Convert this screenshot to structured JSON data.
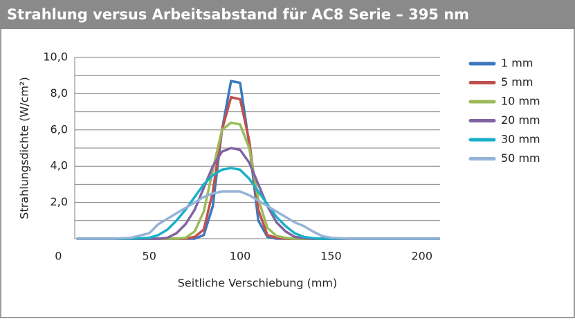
{
  "chart_data": {
    "type": "line",
    "title": "Strahlung versus Arbeitsabstand für AC8 Serie – 395 nm",
    "x_label": "Seitliche Verschiebung (mm)",
    "y_label": "Strahlungsdichte (W/cm²)",
    "x": [
      10,
      20,
      30,
      40,
      50,
      55,
      60,
      65,
      70,
      75,
      80,
      85,
      90,
      95,
      100,
      105,
      110,
      115,
      120,
      125,
      130,
      135,
      140,
      145,
      150,
      160,
      170,
      180,
      190,
      200,
      210
    ],
    "xlim": [
      9,
      210
    ],
    "xticks": [
      0,
      50,
      100,
      150,
      200
    ],
    "ylim": [
      0,
      10
    ],
    "yticks": [
      {
        "value": 2,
        "label": "2,0"
      },
      {
        "value": 4,
        "label": "4,0"
      },
      {
        "value": 6,
        "label": "6,0"
      },
      {
        "value": 8,
        "label": "8,0"
      },
      {
        "value": 10,
        "label": "10,0"
      }
    ],
    "minor_yticks": [
      1,
      3,
      5,
      7,
      9
    ],
    "grid": true,
    "legend": "right",
    "series": [
      {
        "name": "1 mm",
        "color": "#3a78c0",
        "values": [
          0,
          0,
          0,
          0,
          0,
          0,
          0,
          0,
          0,
          0,
          0.2,
          1.8,
          6.0,
          8.7,
          8.6,
          5.2,
          1.0,
          0.1,
          0,
          0,
          0,
          0,
          0,
          0,
          0,
          0,
          0,
          0,
          0,
          0,
          0
        ]
      },
      {
        "name": "5 mm",
        "color": "#c0504d",
        "values": [
          0,
          0,
          0,
          0,
          0,
          0,
          0,
          0,
          0,
          0.1,
          0.5,
          2.6,
          6.0,
          7.8,
          7.7,
          5.4,
          1.6,
          0.2,
          0.05,
          0,
          0,
          0,
          0,
          0,
          0,
          0,
          0,
          0,
          0,
          0,
          0
        ]
      },
      {
        "name": "10 mm",
        "color": "#9bbb59",
        "values": [
          0,
          0,
          0,
          0,
          0,
          0,
          0,
          0,
          0.05,
          0.4,
          1.5,
          3.8,
          6.0,
          6.4,
          6.3,
          5.0,
          2.2,
          0.6,
          0.15,
          0.05,
          0,
          0,
          0,
          0,
          0,
          0,
          0,
          0,
          0,
          0,
          0
        ]
      },
      {
        "name": "20 mm",
        "color": "#8064a2",
        "values": [
          0,
          0,
          0,
          0,
          0,
          0,
          0.05,
          0.3,
          0.8,
          1.6,
          2.8,
          4.0,
          4.8,
          5.0,
          4.9,
          4.2,
          3.0,
          1.8,
          0.9,
          0.4,
          0.1,
          0.03,
          0,
          0,
          0,
          0,
          0,
          0,
          0,
          0,
          0
        ]
      },
      {
        "name": "30 mm",
        "color": "#1ab0c8",
        "values": [
          0,
          0,
          0,
          0,
          0.05,
          0.2,
          0.5,
          1.0,
          1.6,
          2.3,
          3.0,
          3.5,
          3.8,
          3.9,
          3.8,
          3.3,
          2.6,
          1.9,
          1.2,
          0.7,
          0.3,
          0.1,
          0.03,
          0,
          0,
          0,
          0,
          0,
          0,
          0,
          0
        ]
      },
      {
        "name": "50 mm",
        "color": "#95b3d7",
        "values": [
          0,
          0,
          0,
          0.05,
          0.3,
          0.8,
          1.1,
          1.4,
          1.7,
          2.0,
          2.3,
          2.5,
          2.6,
          2.6,
          2.6,
          2.4,
          2.1,
          1.8,
          1.5,
          1.2,
          0.9,
          0.7,
          0.4,
          0.15,
          0.05,
          0,
          0,
          0,
          0,
          0,
          0
        ]
      }
    ]
  }
}
